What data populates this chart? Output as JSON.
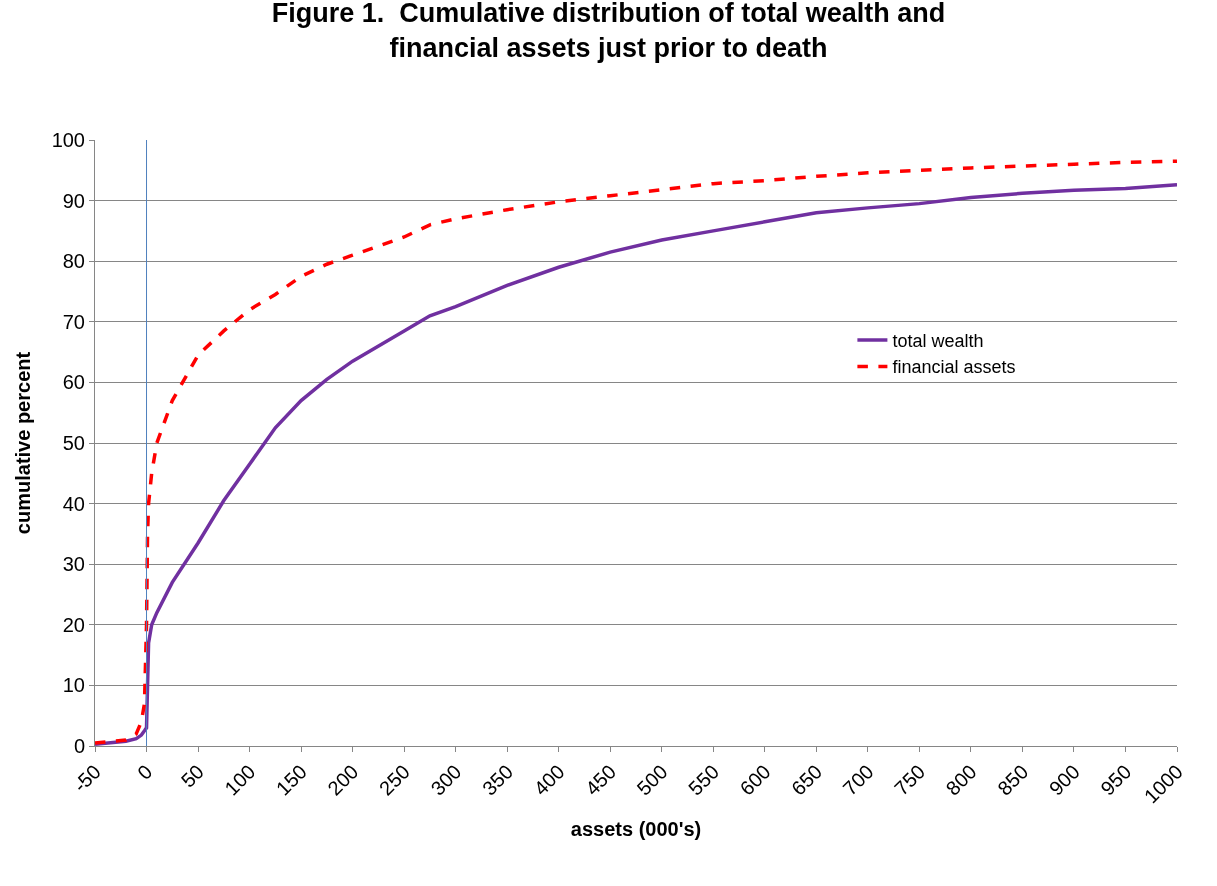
{
  "chart_data": {
    "type": "line",
    "title": "Figure 1.  Cumulative distribution of total wealth and financial assets just prior to death",
    "xlabel": "assets (000's)",
    "ylabel": "cumulative percent",
    "x": [
      -50,
      -20,
      -10,
      -5,
      -2,
      0,
      1,
      2,
      5,
      10,
      25,
      50,
      75,
      100,
      125,
      150,
      175,
      200,
      250,
      275,
      300,
      350,
      400,
      450,
      500,
      550,
      600,
      650,
      700,
      750,
      800,
      850,
      900,
      950,
      1000
    ],
    "series": [
      {
        "name": "total wealth",
        "color": "#7030a0",
        "line_style": "solid",
        "values": [
          0.3,
          0.8,
          1.2,
          1.8,
          2.5,
          3,
          10,
          17,
          20,
          22,
          27,
          33.5,
          40.5,
          46.5,
          52.5,
          57,
          60.5,
          63.5,
          68.5,
          71,
          72.5,
          76,
          79,
          81.5,
          83.5,
          85,
          86.5,
          88,
          88.8,
          89.5,
          90.5,
          91.2,
          91.7,
          92,
          92.6
        ]
      },
      {
        "name": "financial assets",
        "color": "#ff0000",
        "line_style": "dashed",
        "values": [
          0.5,
          1,
          2,
          4,
          7,
          20,
          35,
          40,
          45,
          50,
          57,
          64.5,
          68.5,
          72,
          74.5,
          77.5,
          79.5,
          81,
          84,
          86,
          87,
          88.5,
          89.8,
          90.8,
          91.8,
          92.8,
          93.3,
          94,
          94.6,
          95,
          95.4,
          95.7,
          96,
          96.3,
          96.5
        ]
      }
    ],
    "xlim": [
      -50,
      1000
    ],
    "xticks": [
      -50,
      0,
      50,
      100,
      150,
      200,
      250,
      300,
      350,
      400,
      450,
      500,
      550,
      600,
      650,
      700,
      750,
      800,
      850,
      900,
      950,
      1000
    ],
    "ylim": [
      0,
      100
    ],
    "yticks": [
      0,
      10,
      20,
      30,
      40,
      50,
      60,
      70,
      80,
      90,
      100
    ],
    "ref_lines": [
      {
        "axis": "x",
        "value": 0,
        "color": "#4f81bd",
        "line_style": "solid"
      }
    ],
    "grid": "y",
    "legend": "right",
    "marker": "none"
  }
}
